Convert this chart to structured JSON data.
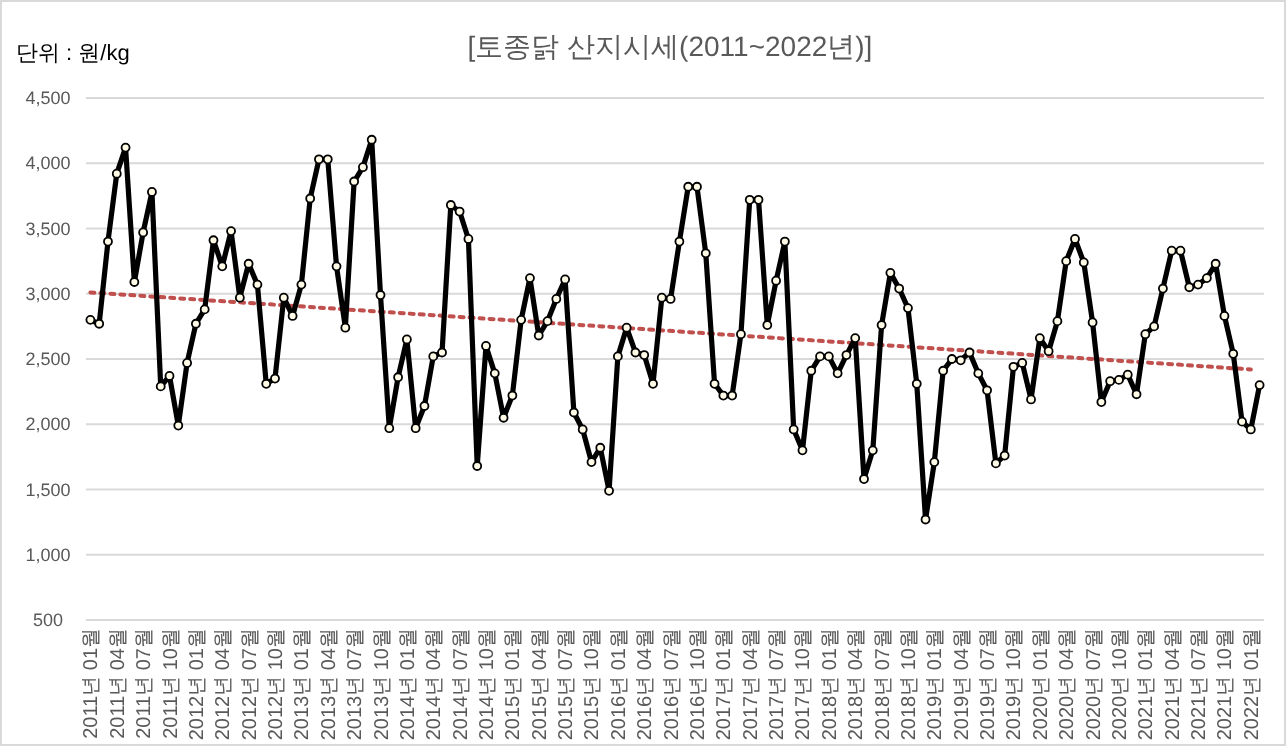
{
  "chart_data": {
    "type": "line",
    "title": "[토종닭 산지시세(2011~2022년)]",
    "ylabel": "단위 : 원/kg",
    "categories": [
      "2011년 01월",
      null,
      null,
      "2011년 04월",
      null,
      null,
      "2011년 07월",
      null,
      null,
      "2011년 10월",
      null,
      null,
      "2012년 01월",
      null,
      null,
      "2012년 04월",
      null,
      null,
      "2012년 07월",
      null,
      null,
      "2012년 10월",
      null,
      null,
      "2013년 01월",
      null,
      null,
      "2013년 04월",
      null,
      null,
      "2013년 07월",
      null,
      null,
      "2013년 10월",
      null,
      null,
      "2014년 01월",
      null,
      null,
      "2014년 04월",
      null,
      null,
      "2014년 07월",
      null,
      null,
      "2014년 10월",
      null,
      null,
      "2015년 01월",
      null,
      null,
      "2015년 04월",
      null,
      null,
      "2015년 07월",
      null,
      null,
      "2015년 10월",
      null,
      null,
      "2016년 01월",
      null,
      null,
      "2016년 04월",
      null,
      null,
      "2016년 07월",
      null,
      null,
      "2016년 10월",
      null,
      null,
      "2017년 01월",
      null,
      null,
      "2017년 04월",
      null,
      null,
      "2017년 07월",
      null,
      null,
      "2017년 10월",
      null,
      null,
      "2018년 01월",
      null,
      null,
      "2018년 04월",
      null,
      null,
      "2018년 07월",
      null,
      null,
      "2018년 10월",
      null,
      null,
      "2019년 01월",
      null,
      null,
      "2019년 04월",
      null,
      null,
      "2019년 07월",
      null,
      null,
      "2019년 10월",
      null,
      null,
      "2020년 01월",
      null,
      null,
      "2020년 04월",
      null,
      null,
      "2020년 07월",
      null,
      null,
      "2020년 10월",
      null,
      null,
      "2021년 01월",
      null,
      null,
      "2021년 04월",
      null,
      null,
      "2021년 07월",
      null,
      null,
      "2021년 10월",
      null,
      null,
      "2022년 01월",
      null
    ],
    "series": [
      {
        "color": "#000000",
        "marker": "circle",
        "values": [
          2800,
          2770,
          3400,
          3920,
          4120,
          3090,
          3470,
          3780,
          2290,
          2370,
          1990,
          2470,
          2770,
          2880,
          3410,
          3210,
          3480,
          2970,
          3230,
          3070,
          2310,
          2350,
          2970,
          2830,
          3070,
          3730,
          4030,
          4030,
          3210,
          2740,
          3860,
          3970,
          4180,
          2990,
          1970,
          2360,
          2650,
          1970,
          2140,
          2520,
          2550,
          3680,
          3630,
          3420,
          1680,
          2600,
          2390,
          2050,
          2220,
          2800,
          3120,
          2680,
          2790,
          2960,
          3110,
          2090,
          1960,
          1710,
          1820,
          1490,
          2520,
          2740,
          2550,
          2530,
          2310,
          2970,
          2960,
          3400,
          3820,
          3820,
          3310,
          2310,
          2220,
          2220,
          2690,
          3720,
          3720,
          2760,
          3100,
          3400,
          1960,
          1800,
          2410,
          2520,
          2520,
          2390,
          2530,
          2660,
          1580,
          1800,
          2760,
          3160,
          3040,
          2890,
          2310,
          1270,
          1710,
          2410,
          2500,
          2490,
          2550,
          2390,
          2260,
          1700,
          1760,
          2440,
          2470,
          2190,
          2660,
          2560,
          2790,
          3250,
          3420,
          3240,
          2780,
          2170,
          2330,
          2340,
          2380,
          2230,
          2690,
          2750,
          3040,
          3330,
          3330,
          3050,
          3070,
          3120,
          3230,
          2830,
          2540,
          2020,
          1960,
          2300
        ]
      },
      {
        "type": "line",
        "color": "#c0504d",
        "line_style": "dotted",
        "marker": "none",
        "x": [
          "2011년 01월",
          "2022년 01월"
        ],
        "values": [
          3010,
          2420
        ]
      }
    ],
    "ylim": [
      500,
      4500
    ],
    "yticks": [
      {
        "value": 500,
        "label": "500"
      },
      {
        "value": 1000,
        "label": "1,000"
      },
      {
        "value": 1500,
        "label": "1,500"
      },
      {
        "value": 2000,
        "label": "2,000"
      },
      {
        "value": 2500,
        "label": "2,500"
      },
      {
        "value": 3000,
        "label": "3,000"
      },
      {
        "value": 3500,
        "label": "3,500"
      },
      {
        "value": 4000,
        "label": "4,000"
      },
      {
        "value": 4500,
        "label": "4,500"
      }
    ],
    "grid": "y"
  }
}
